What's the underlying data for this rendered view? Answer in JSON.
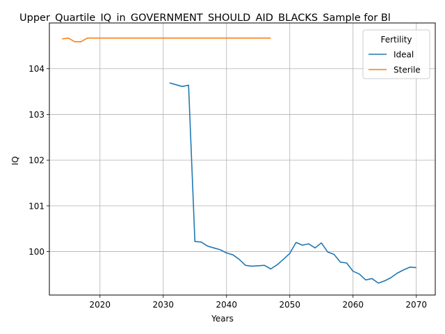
{
  "chart_data": {
    "type": "line",
    "title": "Upper_Quartile_IQ_in_GOVERNMENT_SHOULD_AID_BLACKS_Sample for Bl",
    "xlabel": "Years",
    "ylabel": "IQ",
    "xlim": [
      2012,
      2073
    ],
    "ylim": [
      99.05,
      105.0
    ],
    "xticks": [
      2020,
      2030,
      2040,
      2050,
      2060,
      2070
    ],
    "yticks": [
      100,
      101,
      102,
      103,
      104
    ],
    "grid": true,
    "legend": {
      "title": "Fertility",
      "placement": "top-right"
    },
    "series": [
      {
        "name": "Ideal",
        "color": "#1f77b4",
        "x": [
          2031,
          2032,
          2033,
          2034,
          2035,
          2036,
          2037,
          2038,
          2039,
          2040,
          2041,
          2042,
          2043,
          2044,
          2045,
          2046,
          2047,
          2048,
          2049,
          2050,
          2051,
          2052,
          2053,
          2054,
          2055,
          2056,
          2057,
          2058,
          2059,
          2060,
          2061,
          2062,
          2063,
          2064,
          2065,
          2066,
          2067,
          2068,
          2069,
          2070
        ],
        "y": [
          103.69,
          103.65,
          103.61,
          103.64,
          100.22,
          100.21,
          100.12,
          100.08,
          100.04,
          99.97,
          99.93,
          99.83,
          99.7,
          99.68,
          99.69,
          99.7,
          99.62,
          99.71,
          99.83,
          99.96,
          100.2,
          100.14,
          100.17,
          100.08,
          100.19,
          99.99,
          99.94,
          99.77,
          99.75,
          99.57,
          99.51,
          99.38,
          99.41,
          99.31,
          99.36,
          99.43,
          99.53,
          99.6,
          99.66,
          99.65
        ]
      },
      {
        "name": "Sterile",
        "color": "#ff7f0e",
        "x": [
          2014,
          2015,
          2016,
          2017,
          2018,
          2019,
          2020,
          2021,
          2022,
          2023,
          2024,
          2025,
          2026,
          2027,
          2028,
          2029,
          2030,
          2031,
          2032,
          2033,
          2034,
          2035,
          2036,
          2037,
          2038,
          2039,
          2040,
          2041,
          2042,
          2043,
          2044,
          2045,
          2046,
          2047
        ],
        "y": [
          104.65,
          104.67,
          104.59,
          104.59,
          104.67,
          104.67,
          104.67,
          104.67,
          104.67,
          104.67,
          104.67,
          104.67,
          104.67,
          104.67,
          104.67,
          104.67,
          104.67,
          104.67,
          104.67,
          104.67,
          104.67,
          104.67,
          104.67,
          104.67,
          104.67,
          104.67,
          104.67,
          104.67,
          104.67,
          104.67,
          104.67,
          104.67,
          104.67,
          104.67
        ]
      }
    ]
  }
}
